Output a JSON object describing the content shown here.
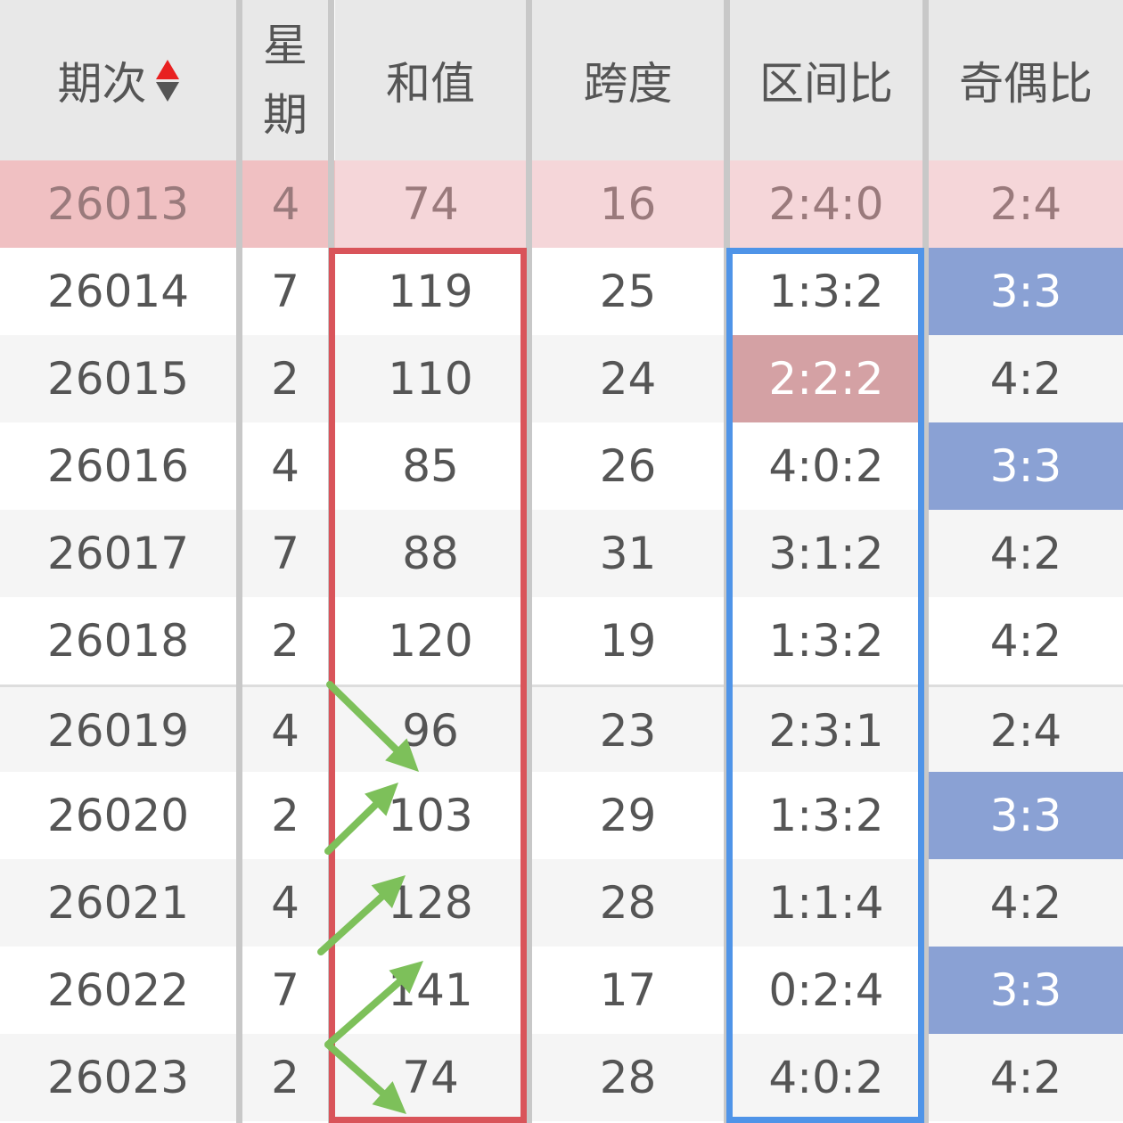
{
  "headers": [
    {
      "label": "期次",
      "sortable": true
    },
    {
      "label": "星\n期"
    },
    {
      "label": "和值"
    },
    {
      "label": "跨度"
    },
    {
      "label": "区间比"
    },
    {
      "label": "奇偶比"
    }
  ],
  "rows": [
    {
      "cells": [
        "26013",
        "4",
        "74",
        "16",
        "2:4:0",
        "2:4"
      ],
      "selected": true
    },
    {
      "cells": [
        "26014",
        "7",
        "119",
        "25",
        "1:3:2",
        "3:3"
      ],
      "highlight": {
        "5": "blue"
      }
    },
    {
      "cells": [
        "26015",
        "2",
        "110",
        "24",
        "2:2:2",
        "4:2"
      ],
      "highlight": {
        "4": "red"
      }
    },
    {
      "cells": [
        "26016",
        "4",
        "85",
        "26",
        "4:0:2",
        "3:3"
      ],
      "highlight": {
        "5": "blue"
      }
    },
    {
      "cells": [
        "26017",
        "7",
        "88",
        "31",
        "3:1:2",
        "4:2"
      ]
    },
    {
      "cells": [
        "26018",
        "2",
        "120",
        "19",
        "1:3:2",
        "4:2"
      ]
    },
    {
      "cells": [
        "26019",
        "4",
        "96",
        "23",
        "2:3:1",
        "2:4"
      ]
    },
    {
      "cells": [
        "26020",
        "2",
        "103",
        "29",
        "1:3:2",
        "3:3"
      ],
      "highlight": {
        "5": "blue"
      }
    },
    {
      "cells": [
        "26021",
        "4",
        "128",
        "28",
        "1:1:4",
        "4:2"
      ]
    },
    {
      "cells": [
        "26022",
        "7",
        "141",
        "17",
        "0:2:4",
        "3:3"
      ],
      "highlight": {
        "5": "blue"
      }
    },
    {
      "cells": [
        "26023",
        "2",
        "74",
        "28",
        "4:0:2",
        "4:2"
      ]
    }
  ],
  "colors": {
    "header_bg": "#e8e8e8",
    "selected_row_bg": "#f5d6d9",
    "selected_row_key_bg": "#f0c0c2",
    "alt_row_bg": "#f5f5f5",
    "red_cell": "#d4a1a4",
    "blue_cell": "#8aa1d4",
    "sum_box": "#d9545a",
    "zone_box": "#4f94e8",
    "arrows": "#7dc05a",
    "sort_up": "#e82020"
  },
  "annotations": {
    "sum_column_box": "red-rectangle",
    "zone_column_box": "blue-rectangle",
    "trend_arrows": "green-arrows"
  }
}
